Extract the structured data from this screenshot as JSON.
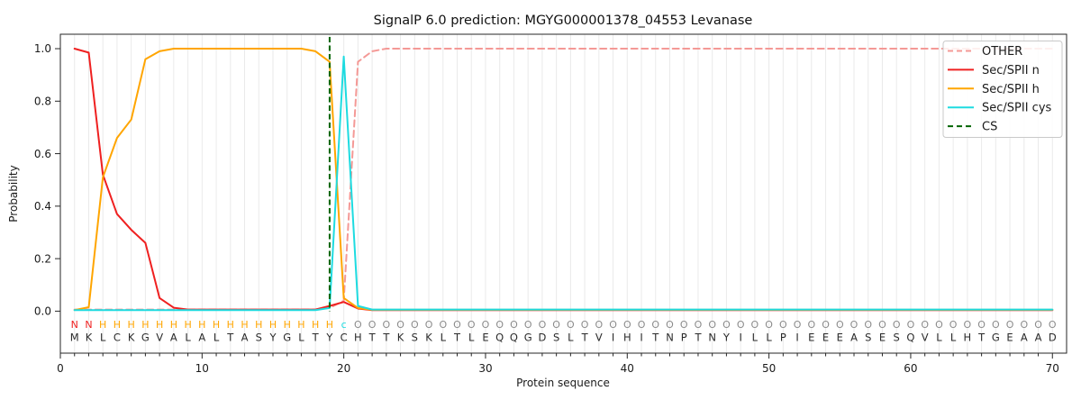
{
  "figure": {
    "title": "SignalP 6.0 prediction: MGYG000001378_04553 Levanase",
    "xlabel": "Protein sequence",
    "ylabel": "Probability"
  },
  "chart_data": {
    "type": "line",
    "title": "SignalP 6.0 prediction: MGYG000001378_04553 Levanase",
    "xlabel": "Protein sequence",
    "ylabel": "Probability",
    "xlim": [
      0,
      71
    ],
    "ylim": [
      -0.16,
      1.055
    ],
    "xticks": [
      0,
      10,
      20,
      30,
      40,
      50,
      60,
      70
    ],
    "yticks": [
      "0.0",
      "0.2",
      "0.4",
      "0.6",
      "0.8",
      "1.0"
    ],
    "grid": "vertical-per-residue",
    "grid_color": "#eaeaea",
    "spine_color": "#262626",
    "text_color": "#1a1a1a",
    "legend_position": "upper right",
    "sequence": "MKLCKGVALALTASYGLTYCHTTKSKLTLEQQGDSLTVIHITNPTNYILLPIEEEASESQVLLHTGEAAD",
    "residue_annotations": "NNHHHHHHHHHHHHHHHHHcOOOOOOOOOOOOOOOOOOOOOOOOOOOOOOOOOOOOOOOOOOOOOOOOOO",
    "annotation_colors": {
      "N": "#ef2020",
      "H": "#ffa500",
      "c": "#1edbe0",
      "O": "#8b8b8b"
    },
    "residue_color": "#2a2a2a",
    "cleavage_site": {
      "label": "CS",
      "position": 19,
      "color": "#006400",
      "style": "dashed"
    },
    "series": [
      {
        "name": "OTHER",
        "color": "#f49996",
        "style": "dashed",
        "values": [
          0.006,
          0.006,
          0.006,
          0.006,
          0.006,
          0.006,
          0.006,
          0.006,
          0.006,
          0.006,
          0.006,
          0.006,
          0.006,
          0.006,
          0.006,
          0.006,
          0.006,
          0.006,
          0.012,
          0.04,
          0.95,
          0.99,
          1,
          1,
          1,
          1,
          1,
          1,
          1,
          1,
          1,
          1,
          1,
          1,
          1,
          1,
          1,
          1,
          1,
          1,
          1,
          1,
          1,
          1,
          1,
          1,
          1,
          1,
          1,
          1,
          1,
          1,
          1,
          1,
          1,
          1,
          1,
          1,
          1,
          1,
          1,
          1,
          1,
          1,
          1,
          1,
          1,
          1,
          1,
          1
        ]
      },
      {
        "name": "Sec/SPII n",
        "color": "#ef2020",
        "style": "solid",
        "values": [
          1,
          0.985,
          0.52,
          0.37,
          0.31,
          0.26,
          0.05,
          0.013,
          0.006,
          0.006,
          0.006,
          0.006,
          0.006,
          0.006,
          0.006,
          0.006,
          0.006,
          0.006,
          0.02,
          0.035,
          0.01,
          0.004,
          0.004,
          0.004,
          0.004,
          0.004,
          0.004,
          0.004,
          0.004,
          0.004,
          0.004,
          0.004,
          0.004,
          0.004,
          0.004,
          0.004,
          0.004,
          0.004,
          0.004,
          0.004,
          0.004,
          0.004,
          0.004,
          0.004,
          0.004,
          0.004,
          0.004,
          0.004,
          0.004,
          0.004,
          0.004,
          0.004,
          0.004,
          0.004,
          0.004,
          0.004,
          0.004,
          0.004,
          0.004,
          0.004,
          0.004,
          0.004,
          0.004,
          0.004,
          0.004,
          0.004,
          0.004,
          0.004,
          0.004,
          0.004
        ]
      },
      {
        "name": "Sec/SPII h",
        "color": "#ffa500",
        "style": "solid",
        "values": [
          0.004,
          0.015,
          0.51,
          0.66,
          0.73,
          0.96,
          0.99,
          1,
          1,
          1,
          1,
          1,
          1,
          1,
          1,
          1,
          1,
          0.99,
          0.95,
          0.05,
          0.012,
          0.005,
          0.005,
          0.005,
          0.005,
          0.005,
          0.005,
          0.005,
          0.005,
          0.005,
          0.005,
          0.005,
          0.005,
          0.005,
          0.005,
          0.005,
          0.005,
          0.005,
          0.005,
          0.005,
          0.005,
          0.005,
          0.005,
          0.005,
          0.005,
          0.005,
          0.005,
          0.005,
          0.005,
          0.005,
          0.005,
          0.005,
          0.005,
          0.005,
          0.005,
          0.005,
          0.005,
          0.005,
          0.005,
          0.005,
          0.005,
          0.005,
          0.005,
          0.005,
          0.005,
          0.005,
          0.005,
          0.005,
          0.005,
          0.005
        ]
      },
      {
        "name": "Sec/SPII cys",
        "color": "#1edbe0",
        "style": "solid",
        "values": [
          0.004,
          0.004,
          0.004,
          0.004,
          0.004,
          0.004,
          0.004,
          0.004,
          0.004,
          0.004,
          0.004,
          0.004,
          0.004,
          0.004,
          0.004,
          0.004,
          0.004,
          0.004,
          0.012,
          0.97,
          0.02,
          0.006,
          0.006,
          0.006,
          0.006,
          0.006,
          0.006,
          0.006,
          0.006,
          0.006,
          0.006,
          0.006,
          0.006,
          0.006,
          0.006,
          0.006,
          0.006,
          0.006,
          0.006,
          0.006,
          0.006,
          0.006,
          0.006,
          0.006,
          0.006,
          0.006,
          0.006,
          0.006,
          0.006,
          0.006,
          0.006,
          0.006,
          0.006,
          0.006,
          0.006,
          0.006,
          0.006,
          0.006,
          0.006,
          0.006,
          0.006,
          0.006,
          0.006,
          0.006,
          0.006,
          0.006,
          0.006,
          0.006,
          0.006,
          0.006
        ]
      }
    ]
  }
}
